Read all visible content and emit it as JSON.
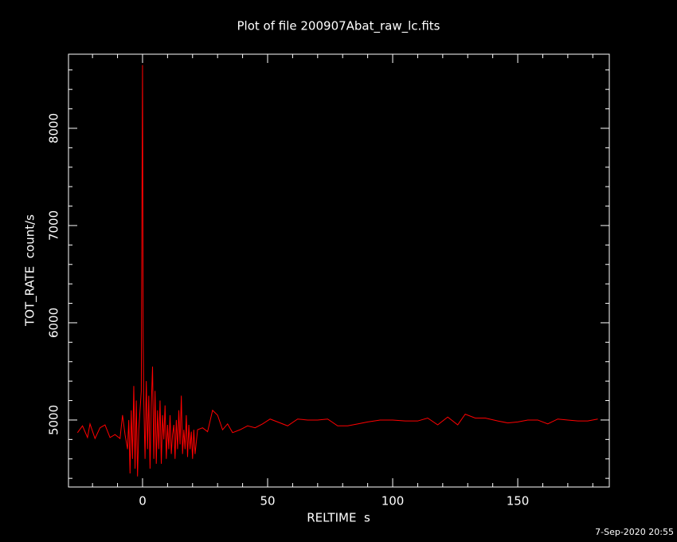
{
  "chart_data": {
    "type": "line",
    "title": "Plot of file 200907Abat_raw_lc.fits",
    "x_label": "RELTIME  s",
    "y_label": "TOT_RATE  count/s",
    "footer": "7-Sep-2020 20:55",
    "xlim": [
      -29.6,
      186.6
    ],
    "ylim": [
      4311,
      8762
    ],
    "xticks": [
      0,
      50,
      100,
      150
    ],
    "yticks": [
      5000,
      6000,
      7000,
      8000
    ],
    "xminorticks": [
      -20,
      -10,
      10,
      20,
      30,
      40,
      60,
      70,
      80,
      90,
      110,
      120,
      130,
      140,
      160,
      170,
      180
    ],
    "yminorticks": [
      4400,
      4600,
      4800,
      5200,
      5400,
      5600,
      5800,
      6200,
      6400,
      6600,
      6800,
      7200,
      7400,
      7600,
      7800,
      8200,
      8400,
      8600
    ],
    "series": [
      {
        "color": "#ff0000",
        "x": [
          -26,
          -24,
          -22,
          -21,
          -19,
          -17,
          -15,
          -13,
          -11,
          -9,
          -8,
          -7,
          -6,
          -5.5,
          -5,
          -4.5,
          -4,
          -3.5,
          -3,
          -2.5,
          -2,
          -1.5,
          -1,
          -0.5,
          -0.25,
          0,
          0.25,
          0.5,
          1,
          1.5,
          2,
          2.5,
          3,
          3.5,
          4,
          4.5,
          5,
          5.5,
          6,
          6.5,
          7,
          7.5,
          8,
          8.5,
          9,
          9.5,
          10,
          10.5,
          11,
          11.5,
          12,
          12.5,
          13,
          13.5,
          14,
          14.5,
          15,
          15.5,
          16,
          16.5,
          17,
          17.5,
          18,
          18.5,
          19,
          19.5,
          20,
          20.5,
          21,
          22,
          24,
          26,
          28,
          30,
          32,
          34,
          36,
          39,
          42,
          45,
          48,
          51,
          54,
          58,
          62,
          66,
          70,
          74,
          78,
          82,
          86,
          90,
          95,
          100,
          105,
          110,
          114,
          118,
          122,
          126,
          129,
          133,
          137,
          142,
          146,
          150,
          154,
          158,
          162,
          166,
          170,
          174,
          178,
          182
        ],
        "values": [
          4870,
          4940,
          4820,
          4960,
          4810,
          4920,
          4950,
          4820,
          4850,
          4810,
          5050,
          4850,
          4700,
          5000,
          4450,
          5100,
          4600,
          5350,
          4500,
          5200,
          4420,
          4900,
          5100,
          5300,
          7100,
          8650,
          5850,
          5200,
          4600,
          5400,
          4700,
          5250,
          4500,
          5150,
          5550,
          4600,
          5300,
          4550,
          5100,
          4700,
          5200,
          4550,
          5050,
          4800,
          5150,
          4600,
          4950,
          4700,
          5050,
          4650,
          4850,
          4950,
          4600,
          5000,
          4700,
          5100,
          4750,
          5250,
          4650,
          4900,
          4700,
          5050,
          4620,
          4950,
          4700,
          4880,
          4600,
          4900,
          4650,
          4900,
          4920,
          4880,
          5100,
          5050,
          4900,
          4960,
          4870,
          4900,
          4940,
          4920,
          4960,
          5010,
          4980,
          4940,
          5010,
          5000,
          5000,
          5010,
          4940,
          4940,
          4960,
          4980,
          5000,
          5000,
          4990,
          4990,
          5020,
          4950,
          5030,
          4950,
          5060,
          5020,
          5020,
          4990,
          4970,
          4980,
          5000,
          5000,
          4960,
          5010,
          5000,
          4990,
          4990,
          5010
        ]
      }
    ]
  }
}
